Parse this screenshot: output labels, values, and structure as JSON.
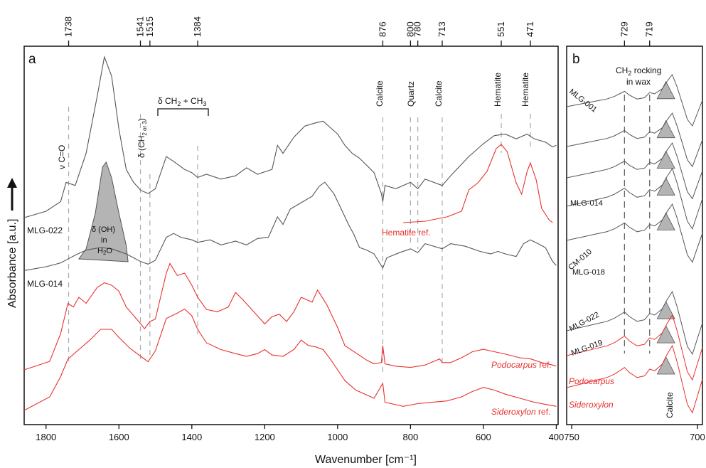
{
  "chart_data": [
    {
      "panel": "a",
      "type": "line",
      "xlabel": "Wavenumber [cm⁻¹]",
      "ylabel": "Absorbance [a.u.]",
      "xlim": [
        1860,
        395
      ],
      "x_ticks": [
        "1800",
        "1600",
        "1400",
        "1200",
        "1000",
        "800",
        "600",
        "400"
      ],
      "top_ticks": [
        "1738",
        "1541",
        "1515",
        "1384",
        "876",
        "800",
        "780",
        "713",
        "551",
        "471"
      ],
      "series": [
        {
          "name": "MLG-022",
          "color": "#555555",
          "points": [
            [
              1860,
              0.0
            ],
            [
              1800,
              0.04
            ],
            [
              1760,
              0.1
            ],
            [
              1745,
              0.22
            ],
            [
              1720,
              0.2
            ],
            [
              1690,
              0.4
            ],
            [
              1660,
              0.75
            ],
            [
              1640,
              1.0
            ],
            [
              1620,
              0.88
            ],
            [
              1600,
              0.55
            ],
            [
              1580,
              0.3
            ],
            [
              1560,
              0.22
            ],
            [
              1540,
              0.17
            ],
            [
              1520,
              0.15
            ],
            [
              1500,
              0.18
            ],
            [
              1470,
              0.38
            ],
            [
              1450,
              0.35
            ],
            [
              1420,
              0.3
            ],
            [
              1400,
              0.28
            ],
            [
              1384,
              0.25
            ],
            [
              1360,
              0.27
            ],
            [
              1320,
              0.24
            ],
            [
              1280,
              0.26
            ],
            [
              1250,
              0.31
            ],
            [
              1220,
              0.27
            ],
            [
              1180,
              0.3
            ],
            [
              1165,
              0.45
            ],
            [
              1150,
              0.4
            ],
            [
              1120,
              0.5
            ],
            [
              1090,
              0.57
            ],
            [
              1060,
              0.59
            ],
            [
              1040,
              0.6
            ],
            [
              1020,
              0.56
            ],
            [
              1000,
              0.52
            ],
            [
              980,
              0.45
            ],
            [
              960,
              0.4
            ],
            [
              940,
              0.37
            ],
            [
              900,
              0.28
            ],
            [
              880,
              0.15
            ],
            [
              876,
              0.1
            ],
            [
              870,
              0.2
            ],
            [
              840,
              0.18
            ],
            [
              800,
              0.22
            ],
            [
              780,
              0.18
            ],
            [
              760,
              0.24
            ],
            [
              713,
              0.2
            ],
            [
              690,
              0.26
            ],
            [
              640,
              0.38
            ],
            [
              600,
              0.46
            ],
            [
              570,
              0.51
            ],
            [
              540,
              0.52
            ],
            [
              510,
              0.49
            ],
            [
              480,
              0.52
            ],
            [
              460,
              0.49
            ],
            [
              430,
              0.47
            ],
            [
              410,
              0.44
            ],
            [
              400,
              0.45
            ]
          ]
        },
        {
          "name": "Hematite ref.",
          "color": "#e8312e",
          "points": [
            [
              820,
              0.0
            ],
            [
              760,
              0.01
            ],
            [
              700,
              0.04
            ],
            [
              660,
              0.08
            ],
            [
              640,
              0.23
            ],
            [
              615,
              0.28
            ],
            [
              590,
              0.36
            ],
            [
              565,
              0.52
            ],
            [
              551,
              0.55
            ],
            [
              535,
              0.5
            ],
            [
              510,
              0.28
            ],
            [
              495,
              0.2
            ],
            [
              480,
              0.36
            ],
            [
              471,
              0.42
            ],
            [
              455,
              0.3
            ],
            [
              440,
              0.1
            ],
            [
              420,
              0.02
            ],
            [
              410,
              0.0
            ]
          ]
        },
        {
          "name": "MLG-014",
          "color": "#555555",
          "points": [
            [
              1860,
              0.02
            ],
            [
              1800,
              0.05
            ],
            [
              1760,
              0.08
            ],
            [
              1740,
              0.11
            ],
            [
              1720,
              0.14
            ],
            [
              1690,
              0.18
            ],
            [
              1650,
              0.2
            ],
            [
              1620,
              0.19
            ],
            [
              1580,
              0.15
            ],
            [
              1560,
              0.12
            ],
            [
              1540,
              0.09
            ],
            [
              1520,
              0.07
            ],
            [
              1500,
              0.1
            ],
            [
              1470,
              0.28
            ],
            [
              1450,
              0.31
            ],
            [
              1430,
              0.28
            ],
            [
              1400,
              0.26
            ],
            [
              1384,
              0.24
            ],
            [
              1350,
              0.26
            ],
            [
              1320,
              0.22
            ],
            [
              1280,
              0.25
            ],
            [
              1250,
              0.22
            ],
            [
              1220,
              0.27
            ],
            [
              1190,
              0.28
            ],
            [
              1165,
              0.44
            ],
            [
              1150,
              0.38
            ],
            [
              1130,
              0.5
            ],
            [
              1100,
              0.55
            ],
            [
              1070,
              0.6
            ],
            [
              1050,
              0.68
            ],
            [
              1035,
              0.71
            ],
            [
              1010,
              0.62
            ],
            [
              990,
              0.5
            ],
            [
              970,
              0.38
            ],
            [
              955,
              0.3
            ],
            [
              940,
              0.2
            ],
            [
              920,
              0.18
            ],
            [
              900,
              0.15
            ],
            [
              876,
              0.04
            ],
            [
              865,
              0.12
            ],
            [
              830,
              0.16
            ],
            [
              800,
              0.19
            ],
            [
              780,
              0.16
            ],
            [
              760,
              0.23
            ],
            [
              713,
              0.19
            ],
            [
              690,
              0.23
            ],
            [
              650,
              0.21
            ],
            [
              610,
              0.17
            ],
            [
              580,
              0.15
            ],
            [
              560,
              0.17
            ],
            [
              540,
              0.15
            ],
            [
              510,
              0.13
            ],
            [
              490,
              0.23
            ],
            [
              471,
              0.26
            ],
            [
              450,
              0.23
            ],
            [
              430,
              0.2
            ],
            [
              410,
              0.09
            ],
            [
              400,
              0.06
            ]
          ]
        },
        {
          "name": "Podocarpus ref.",
          "color": "#e8312e",
          "points": [
            [
              1860,
              0.0
            ],
            [
              1790,
              0.07
            ],
            [
              1760,
              0.3
            ],
            [
              1740,
              0.55
            ],
            [
              1725,
              0.52
            ],
            [
              1710,
              0.6
            ],
            [
              1690,
              0.55
            ],
            [
              1660,
              0.68
            ],
            [
              1640,
              0.72
            ],
            [
              1620,
              0.7
            ],
            [
              1600,
              0.65
            ],
            [
              1580,
              0.52
            ],
            [
              1560,
              0.45
            ],
            [
              1540,
              0.38
            ],
            [
              1530,
              0.34
            ],
            [
              1515,
              0.4
            ],
            [
              1500,
              0.42
            ],
            [
              1470,
              0.8
            ],
            [
              1460,
              0.88
            ],
            [
              1440,
              0.78
            ],
            [
              1420,
              0.8
            ],
            [
              1400,
              0.7
            ],
            [
              1384,
              0.6
            ],
            [
              1360,
              0.5
            ],
            [
              1330,
              0.48
            ],
            [
              1300,
              0.52
            ],
            [
              1280,
              0.64
            ],
            [
              1260,
              0.58
            ],
            [
              1230,
              0.48
            ],
            [
              1200,
              0.38
            ],
            [
              1180,
              0.44
            ],
            [
              1160,
              0.46
            ],
            [
              1140,
              0.4
            ],
            [
              1120,
              0.48
            ],
            [
              1100,
              0.6
            ],
            [
              1070,
              0.56
            ],
            [
              1055,
              0.66
            ],
            [
              1030,
              0.54
            ],
            [
              1000,
              0.35
            ],
            [
              980,
              0.2
            ],
            [
              950,
              0.14
            ],
            [
              920,
              0.08
            ],
            [
              900,
              0.05
            ],
            [
              880,
              0.06
            ],
            [
              876,
              0.2
            ],
            [
              870,
              0.05
            ],
            [
              840,
              0.03
            ],
            [
              800,
              0.02
            ],
            [
              760,
              0.04
            ],
            [
              720,
              0.09
            ],
            [
              713,
              0.06
            ],
            [
              690,
              0.06
            ],
            [
              660,
              0.1
            ],
            [
              630,
              0.15
            ],
            [
              600,
              0.17
            ],
            [
              570,
              0.15
            ],
            [
              540,
              0.13
            ],
            [
              500,
              0.1
            ],
            [
              470,
              0.09
            ],
            [
              440,
              0.06
            ],
            [
              410,
              0.04
            ],
            [
              400,
              0.03
            ]
          ]
        },
        {
          "name": "Sideroxylon ref.",
          "color": "#e8312e",
          "points": [
            [
              1860,
              0.0
            ],
            [
              1790,
              0.1
            ],
            [
              1760,
              0.25
            ],
            [
              1740,
              0.38
            ],
            [
              1710,
              0.45
            ],
            [
              1680,
              0.52
            ],
            [
              1650,
              0.6
            ],
            [
              1620,
              0.6
            ],
            [
              1600,
              0.54
            ],
            [
              1570,
              0.46
            ],
            [
              1540,
              0.4
            ],
            [
              1520,
              0.36
            ],
            [
              1500,
              0.44
            ],
            [
              1470,
              0.68
            ],
            [
              1440,
              0.72
            ],
            [
              1420,
              0.75
            ],
            [
              1400,
              0.7
            ],
            [
              1384,
              0.6
            ],
            [
              1360,
              0.5
            ],
            [
              1320,
              0.45
            ],
            [
              1280,
              0.42
            ],
            [
              1250,
              0.4
            ],
            [
              1220,
              0.42
            ],
            [
              1200,
              0.45
            ],
            [
              1180,
              0.41
            ],
            [
              1150,
              0.4
            ],
            [
              1120,
              0.45
            ],
            [
              1100,
              0.52
            ],
            [
              1080,
              0.48
            ],
            [
              1060,
              0.47
            ],
            [
              1040,
              0.45
            ],
            [
              1020,
              0.38
            ],
            [
              1000,
              0.3
            ],
            [
              980,
              0.22
            ],
            [
              950,
              0.15
            ],
            [
              900,
              0.09
            ],
            [
              876,
              0.2
            ],
            [
              870,
              0.06
            ],
            [
              820,
              0.03
            ],
            [
              780,
              0.05
            ],
            [
              740,
              0.06
            ],
            [
              700,
              0.07
            ],
            [
              660,
              0.1
            ],
            [
              630,
              0.14
            ],
            [
              600,
              0.17
            ],
            [
              570,
              0.15
            ],
            [
              540,
              0.12
            ],
            [
              500,
              0.09
            ],
            [
              460,
              0.06
            ],
            [
              420,
              0.04
            ],
            [
              400,
              0.03
            ]
          ]
        }
      ],
      "annotations": {
        "vco": "ν C=O",
        "dch": "δ (CH",
        "dch_sub": "2 or 3",
        "dch_close": ")",
        "dch_bracket_a": "δ CH",
        "dch_bracket_sub1": "2",
        "dch_bracket_mid": " + CH",
        "dch_bracket_sub2": "3",
        "oh_line1": "δ (OH)",
        "oh_line2": "in",
        "oh_line3a": "H",
        "oh_line3sub": "2",
        "oh_line3b": "O",
        "calcite": "Calcite",
        "quartz": "Quartz",
        "hematite": "Hematite"
      }
    },
    {
      "panel": "b",
      "type": "line",
      "xlim": [
        752,
        698
      ],
      "x_ticks": [
        "750",
        "700"
      ],
      "top_ticks": [
        "729",
        "719"
      ],
      "title_line1a": "CH",
      "title_line1sub": "2",
      "title_line1b": " rocking",
      "title_line2": "in wax",
      "series": [
        {
          "name": "MLG-001",
          "color": "#555555"
        },
        {
          "name": "MLG-014",
          "color": "#555555"
        },
        {
          "name": "CM-010",
          "color": "#555555"
        },
        {
          "name": "MLG-018",
          "color": "#555555"
        },
        {
          "name": "MLG-022",
          "color": "#555555"
        },
        {
          "name": "MLG-019",
          "color": "#555555"
        },
        {
          "name": "Podocarpus",
          "color": "#e8312e"
        },
        {
          "name": "Sideroxylon",
          "color": "#e8312e"
        }
      ],
      "calcite_label": "Calcite"
    }
  ],
  "labels": {
    "panel_a": "a",
    "panel_b": "b",
    "mlg022": "MLG-022",
    "mlg014": "MLG-014",
    "hematite_ref": "Hematite ref.",
    "podocarpus_italic": "Podocarpus",
    "sideroxylon_italic": "Sideroxylon",
    "ref_suffix": " ref."
  },
  "colors": {
    "sample": "#555555",
    "reference": "#e8312e",
    "shade": "#b4b4b4"
  }
}
